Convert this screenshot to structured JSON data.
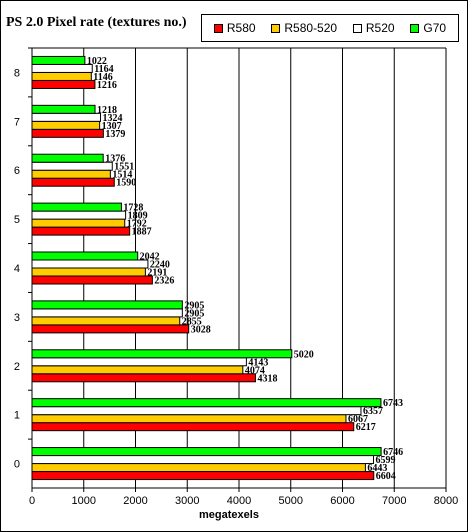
{
  "chart_data": {
    "type": "bar",
    "orientation": "horizontal",
    "title": "PS 2.0 Pixel rate (textures no.)",
    "xlabel": "megatexels",
    "ylabel": "",
    "xlim": [
      0,
      8000
    ],
    "xticks": [
      "0",
      "1000",
      "2000",
      "3000",
      "4000",
      "5000",
      "6000",
      "7000",
      "8000"
    ],
    "grid": true,
    "legend_position": "top-right",
    "categories": [
      "0",
      "1",
      "2",
      "3",
      "4",
      "5",
      "6",
      "7",
      "8"
    ],
    "series": [
      {
        "name": "R580",
        "color": "#ff0000",
        "values": [
          6604,
          6217,
          4318,
          3028,
          2326,
          1887,
          1590,
          1379,
          1216
        ]
      },
      {
        "name": "R580-520",
        "color": "#ffcc00",
        "values": [
          6443,
          6067,
          4074,
          2855,
          2191,
          1792,
          1514,
          1307,
          1146
        ]
      },
      {
        "name": "R520",
        "color": "#ffffff",
        "values": [
          6599,
          6357,
          4143,
          2905,
          2240,
          1809,
          1551,
          1324,
          1164
        ]
      },
      {
        "name": "G70",
        "color": "#00ff00",
        "values": [
          6746,
          6743,
          5020,
          2905,
          2042,
          1728,
          1376,
          1218,
          1022
        ]
      }
    ]
  }
}
